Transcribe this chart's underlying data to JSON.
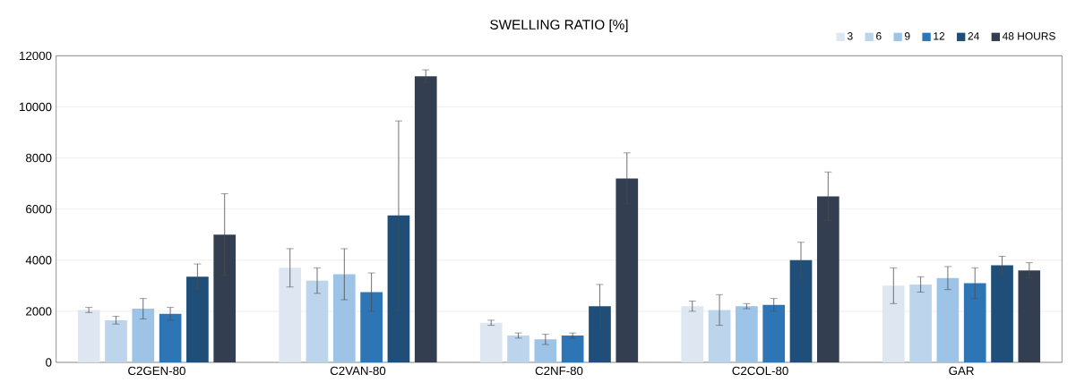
{
  "chart_data": {
    "type": "bar",
    "title": "SWELLING RATIO [%]",
    "categories": [
      "C2GEN-80",
      "C2VAN-80",
      "C2NF-80",
      "C2COL-80",
      "GAR"
    ],
    "series": [
      {
        "name": "3",
        "color": "#dde6f1",
        "values": [
          2050,
          3700,
          1550,
          2200,
          3000
        ],
        "errors": [
          100,
          750,
          100,
          200,
          700
        ]
      },
      {
        "name": "6",
        "color": "#bdd5ec",
        "values": [
          1650,
          3200,
          1050,
          2050,
          3050
        ],
        "errors": [
          150,
          500,
          100,
          600,
          300
        ]
      },
      {
        "name": "9",
        "color": "#9dc3e6",
        "values": [
          2100,
          3450,
          900,
          2200,
          3300
        ],
        "errors": [
          400,
          1000,
          200,
          100,
          450
        ]
      },
      {
        "name": "12",
        "color": "#2e75b6",
        "values": [
          1900,
          2750,
          1050,
          2250,
          3100
        ],
        "errors": [
          250,
          750,
          100,
          250,
          600
        ]
      },
      {
        "name": "24",
        "color": "#1f4e79",
        "values": [
          3350,
          5750,
          2200,
          4000,
          3800
        ],
        "errors": [
          500,
          3700,
          850,
          700,
          350
        ]
      },
      {
        "name": "48 HOURS",
        "color": "#333f50",
        "values": [
          5000,
          11200,
          7200,
          6500,
          3600
        ],
        "errors": [
          1600,
          250,
          1000,
          950,
          300
        ]
      }
    ],
    "ylim": [
      0,
      12000
    ],
    "yticks": [
      0,
      2000,
      4000,
      6000,
      8000,
      10000,
      12000
    ],
    "grid": "y",
    "legend": "top right"
  }
}
